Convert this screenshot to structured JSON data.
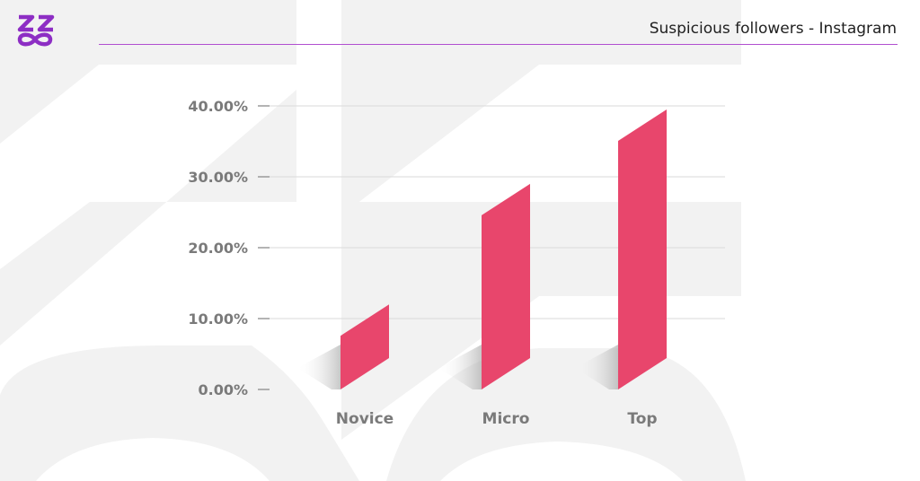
{
  "header": {
    "title": "Suspicious followers - Instagram",
    "rule_color": "#b14fd0"
  },
  "logo": {
    "icon": "zz-infinity-logo-icon",
    "color": "#8d2ec4"
  },
  "chart_data": {
    "type": "bar",
    "title": "Suspicious followers - Instagram",
    "xlabel": "",
    "ylabel": "",
    "categories": [
      "Novice",
      "Micro",
      "Top"
    ],
    "values": [
      12.0,
      29.0,
      39.5
    ],
    "ylim": [
      0,
      40
    ],
    "yticks": [
      {
        "value": 0,
        "label": "0.00%"
      },
      {
        "value": 10,
        "label": "10.00%"
      },
      {
        "value": 20,
        "label": "20.00%"
      },
      {
        "value": 30,
        "label": "30.00%"
      },
      {
        "value": 40,
        "label": "40.00%"
      }
    ],
    "grid": true,
    "bar_color": "#e8466c",
    "gridline_color": "#d9d9d9"
  }
}
